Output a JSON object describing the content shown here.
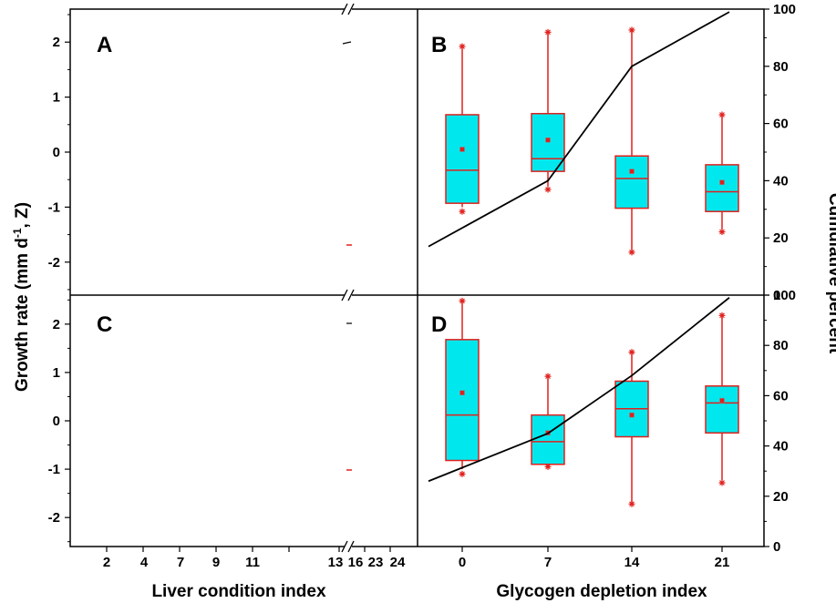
{
  "chart_data": {
    "type": "box",
    "ylabel_parts": [
      "Growth rate  (mm d",
      "-1",
      ", Z)"
    ],
    "ylabel_right": "Cumulative percent",
    "xlabel_left": "Liver condition index",
    "xlabel_right": "Glycogen depletion index",
    "left_x_ticks": [
      "2",
      "4",
      "7",
      "9",
      "11",
      "13",
      "16",
      "23",
      "24"
    ],
    "right_x_ticks": [
      "0",
      "7",
      "14",
      "21"
    ],
    "left_y_ticks": [
      "2",
      "1",
      "0",
      "-1",
      "-2"
    ],
    "right_y_ticks": [
      "100",
      "80",
      "60",
      "40",
      "20",
      "0"
    ],
    "ylim": [
      -2.6,
      2.6
    ],
    "ylim_right": [
      0,
      100
    ],
    "colors": {
      "box_fill": "#00e8ee",
      "box_stroke": "#e0201c",
      "line": "#000000",
      "axis": "#000000"
    },
    "panels": [
      {
        "letter": "A",
        "series": []
      },
      {
        "letter": "B",
        "boxes": [
          {
            "x": 0,
            "whisker_low": -1.0,
            "q1": -0.93,
            "median": -0.33,
            "q3": 0.68,
            "whisker_high": 1.88,
            "mean": 0.05,
            "min_marker": -1.08,
            "max_marker": 1.92
          },
          {
            "x": 7,
            "whisker_low": -0.62,
            "q1": -0.35,
            "median": -0.12,
            "q3": 0.7,
            "whisker_high": 2.15,
            "mean": 0.22,
            "min_marker": -0.68,
            "max_marker": 2.18
          },
          {
            "x": 14,
            "whisker_low": -1.78,
            "q1": -1.02,
            "median": -0.48,
            "q3": -0.07,
            "whisker_high": 2.2,
            "mean": -0.35,
            "min_marker": -1.82,
            "max_marker": 2.22
          },
          {
            "x": 21,
            "whisker_low": -1.4,
            "q1": -1.08,
            "median": -0.72,
            "q3": -0.23,
            "whisker_high": 0.65,
            "mean": -0.55,
            "min_marker": -1.45,
            "max_marker": 0.68
          }
        ],
        "cumulative": [
          17,
          40,
          80,
          99
        ]
      },
      {
        "letter": "C",
        "series": []
      },
      {
        "letter": "D",
        "boxes": [
          {
            "x": 0,
            "whisker_low": -1.0,
            "q1": -0.82,
            "median": 0.12,
            "q3": 1.68,
            "whisker_high": 2.45,
            "mean": 0.58,
            "min_marker": -1.1,
            "max_marker": 2.48
          },
          {
            "x": 7,
            "whisker_low": -0.9,
            "q1": -0.9,
            "median": -0.43,
            "q3": 0.12,
            "whisker_high": 0.88,
            "mean": -0.25,
            "min_marker": -0.95,
            "max_marker": 0.92
          },
          {
            "x": 14,
            "whisker_low": -1.7,
            "q1": -0.33,
            "median": 0.25,
            "q3": 0.82,
            "whisker_high": 1.38,
            "mean": 0.12,
            "min_marker": -1.72,
            "max_marker": 1.42
          },
          {
            "x": 21,
            "whisker_low": -1.22,
            "q1": -0.25,
            "median": 0.37,
            "q3": 0.72,
            "whisker_high": 2.15,
            "mean": 0.42,
            "min_marker": -1.28,
            "max_marker": 2.18
          }
        ],
        "cumulative": [
          26,
          45,
          68,
          99
        ]
      }
    ]
  }
}
